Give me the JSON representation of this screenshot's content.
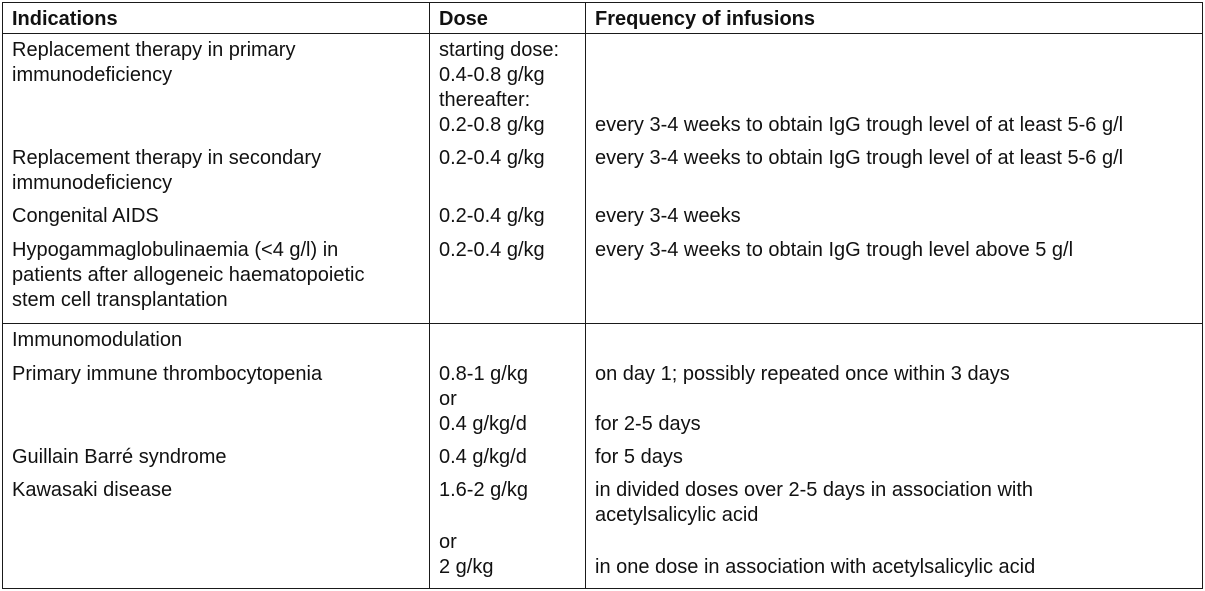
{
  "headers": {
    "indications": "Indications",
    "dose": "Dose",
    "frequency": "Frequency of infusions"
  },
  "replacement": {
    "primary": {
      "indication": [
        "Replacement therapy in primary",
        "immunodeficiency"
      ],
      "dose": [
        "starting dose:",
        "0.4-0.8 g/kg",
        "thereafter:",
        "0.2-0.8 g/kg"
      ],
      "frequency": "every 3-4 weeks to obtain IgG trough level of at least 5-6 g/l"
    },
    "secondary": {
      "indication": [
        "Replacement therapy in secondary",
        "immunodeficiency"
      ],
      "dose": "0.2-0.4 g/kg",
      "frequency": "every 3-4 weeks to obtain IgG trough level of at least 5-6 g/l"
    },
    "aids": {
      "indication": "Congenital AIDS",
      "dose": "0.2-0.4 g/kg",
      "frequency": "every 3-4 weeks"
    },
    "hypogamma": {
      "indication": [
        "Hypogammaglobulinaemia (<4 g/l) in",
        "patients after allogeneic haematopoietic",
        "stem cell transplantation"
      ],
      "dose": "0.2-0.4 g/kg",
      "frequency": "every 3-4 weeks to obtain IgG trough level above 5 g/l"
    }
  },
  "immunomodulation": {
    "section_label": "Immunomodulation",
    "itp": {
      "indication": "Primary immune thrombocytopenia",
      "dose": [
        "0.8-1 g/kg",
        "or",
        "0.4 g/kg/d"
      ],
      "frequency": [
        "on day 1; possibly repeated once within 3 days",
        "for 2-5 days"
      ]
    },
    "gbs": {
      "indication": "Guillain Barré syndrome",
      "dose": "0.4 g/kg/d",
      "frequency": "for 5 days"
    },
    "kawasaki": {
      "indication": "Kawasaki disease",
      "dose": [
        "1.6-2 g/kg",
        "or",
        "2 g/kg"
      ],
      "frequency": [
        "in divided doses over 2-5 days in association with",
        "acetylsalicylic acid",
        "in one dose in association with acetylsalicylic acid"
      ]
    }
  }
}
